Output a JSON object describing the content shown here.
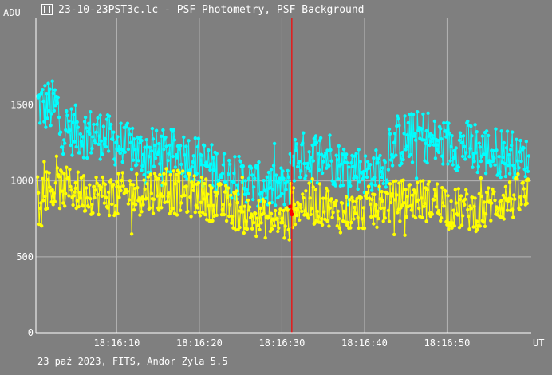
{
  "window": {
    "title": "23-10-23PST3c.lc - PSF Photometry, PSF Background",
    "icon": "app-logo-icon"
  },
  "footer": {
    "text": "23 paź 2023, FITS, Andor Zyla 5.5"
  },
  "chart_data": {
    "type": "line",
    "title": "23-10-23PST3c.lc - PSF Photometry, PSF Background",
    "ylabel": "ADU",
    "xlabel": "UT",
    "x_tick_labels": [
      "18:16:10",
      "18:16:20",
      "18:16:30",
      "18:16:40",
      "18:16:50"
    ],
    "x_ticks_sec": [
      10,
      20,
      30,
      40,
      50
    ],
    "y_ticks": [
      0,
      500,
      1000,
      1500
    ],
    "xlim_sec": [
      0.2,
      60.2
    ],
    "ylim": [
      0,
      2075
    ],
    "grid": true,
    "cursor_sec": 31.2,
    "colors": {
      "background": "#7f7f7f",
      "photometry": "#00ffff",
      "background_series": "#ffff00",
      "cursor": "#ff0000",
      "axes": "#ffffff"
    },
    "samples_per_second": 10,
    "series": [
      {
        "key": "psf_photometry",
        "color": "#00ffff",
        "segments": [
          {
            "x0": 0.4,
            "x1": 3,
            "y0": 1500,
            "y1": 1480,
            "amp": 180
          },
          {
            "x0": 3,
            "x1": 8,
            "y0": 1350,
            "y1": 1300,
            "amp": 170
          },
          {
            "x0": 8,
            "x1": 13,
            "y0": 1300,
            "y1": 1180,
            "amp": 160
          },
          {
            "x0": 13,
            "x1": 18,
            "y0": 1180,
            "y1": 1180,
            "amp": 160
          },
          {
            "x0": 18,
            "x1": 23,
            "y0": 1180,
            "y1": 1050,
            "amp": 160
          },
          {
            "x0": 23,
            "x1": 28,
            "y0": 1050,
            "y1": 960,
            "amp": 150
          },
          {
            "x0": 28,
            "x1": 31,
            "y0": 960,
            "y1": 940,
            "amp": 150
          },
          {
            "x0": 31,
            "x1": 36,
            "y0": 1150,
            "y1": 1170,
            "amp": 170
          },
          {
            "x0": 36,
            "x1": 40,
            "y0": 1120,
            "y1": 1080,
            "amp": 150
          },
          {
            "x0": 40,
            "x1": 43,
            "y0": 1050,
            "y1": 1100,
            "amp": 140
          },
          {
            "x0": 43,
            "x1": 48,
            "y0": 1250,
            "y1": 1300,
            "amp": 180
          },
          {
            "x0": 48,
            "x1": 53,
            "y0": 1250,
            "y1": 1230,
            "amp": 170
          },
          {
            "x0": 53,
            "x1": 58,
            "y0": 1200,
            "y1": 1180,
            "amp": 170
          },
          {
            "x0": 58,
            "x1": 60,
            "y0": 1150,
            "y1": 1150,
            "amp": 130
          }
        ]
      },
      {
        "key": "psf_background",
        "color": "#ffff00",
        "segments": [
          {
            "x0": 0.4,
            "x1": 5,
            "y0": 950,
            "y1": 950,
            "amp": 140
          },
          {
            "x0": 5,
            "x1": 10,
            "y0": 930,
            "y1": 900,
            "amp": 140
          },
          {
            "x0": 10,
            "x1": 15,
            "y0": 900,
            "y1": 940,
            "amp": 150
          },
          {
            "x0": 15,
            "x1": 20,
            "y0": 940,
            "y1": 900,
            "amp": 150
          },
          {
            "x0": 20,
            "x1": 25,
            "y0": 900,
            "y1": 800,
            "amp": 140
          },
          {
            "x0": 25,
            "x1": 31,
            "y0": 780,
            "y1": 720,
            "amp": 130
          },
          {
            "x0": 31,
            "x1": 36,
            "y0": 850,
            "y1": 840,
            "amp": 140
          },
          {
            "x0": 36,
            "x1": 40,
            "y0": 780,
            "y1": 800,
            "amp": 130
          },
          {
            "x0": 40,
            "x1": 45,
            "y0": 820,
            "y1": 880,
            "amp": 140
          },
          {
            "x0": 45,
            "x1": 50,
            "y0": 880,
            "y1": 860,
            "amp": 140
          },
          {
            "x0": 50,
            "x1": 55,
            "y0": 820,
            "y1": 800,
            "amp": 140
          },
          {
            "x0": 55,
            "x1": 60,
            "y0": 850,
            "y1": 900,
            "amp": 140
          }
        ]
      }
    ],
    "cursor_points": [
      {
        "x": 31.0,
        "y": 830,
        "color": "#ff0000"
      },
      {
        "x": 31.1,
        "y": 800,
        "color": "#ff0000"
      },
      {
        "x": 31.2,
        "y": 780,
        "color": "#ff0000"
      }
    ]
  }
}
